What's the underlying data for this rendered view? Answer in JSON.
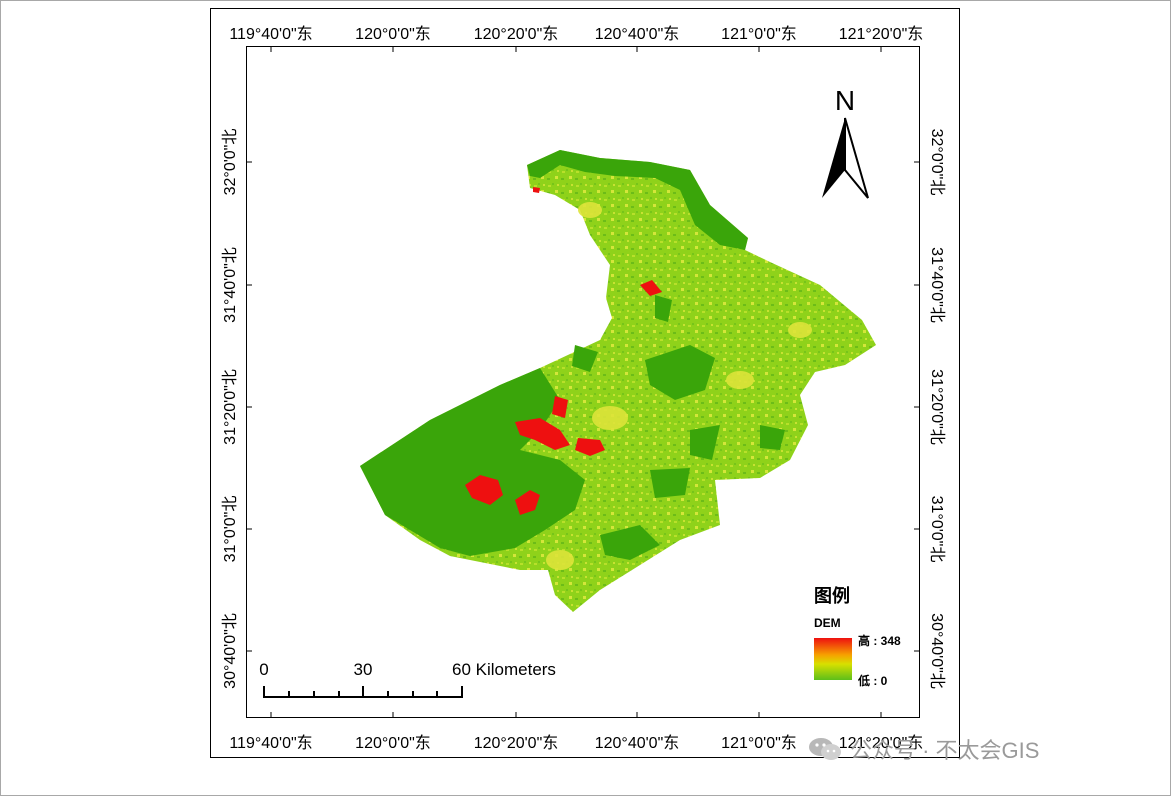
{
  "map": {
    "top_longitudes": [
      "119°40'0\"东",
      "120°0'0\"东",
      "120°20'0\"东",
      "120°40'0\"东",
      "121°0'0\"东",
      "121°20'0\"东"
    ],
    "bottom_longitudes": [
      "119°40'0\"东",
      "120°0'0\"东",
      "120°20'0\"东",
      "120°40'0\"东",
      "121°0'0\"东",
      "121°20'0\"东"
    ],
    "left_latitudes": [
      "32°0'0\"北",
      "31°40'0\"北",
      "31°20'0\"北",
      "31°0'0\"北",
      "30°40'0\"北"
    ],
    "right_latitudes": [
      "32°0'0\"北",
      "31°40'0\"北",
      "31°20'0\"北",
      "31°0'0\"北",
      "30°40'0\"北"
    ],
    "north_label": "N",
    "scale_labels": [
      "0",
      "30",
      "60 Kilometers"
    ]
  },
  "legend": {
    "title": "图例",
    "subtitle": "DEM",
    "high_label": "高 : 348",
    "low_label": "低 : 0"
  },
  "colors": {
    "water": "#3aa50a",
    "land": "#8fd21a",
    "high": "#ee1010"
  },
  "watermark": {
    "text": "公众号 · 不太会GIS",
    "icon": "wechat-icon"
  }
}
